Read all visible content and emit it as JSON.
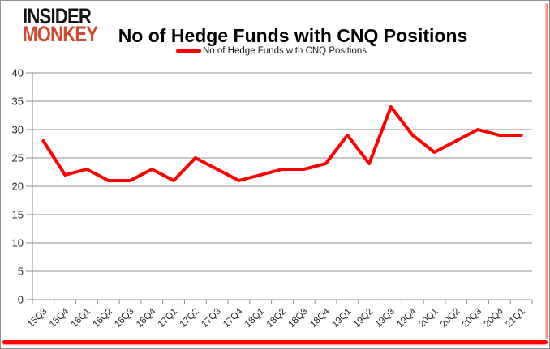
{
  "logo": {
    "line1": "INSIDER",
    "line2": "MONKEY"
  },
  "header": {
    "title": "No of Hedge Funds with CNQ Positions"
  },
  "legend": {
    "label": "No of Hedge Funds with CNQ Positions"
  },
  "colors": {
    "series_line": "#ff0000",
    "gridline": "#8c8c8c",
    "axis": "#8c8c8c",
    "tick_label": "#262626",
    "logo_black": "#151515",
    "logo_red": "#ce4a31",
    "frame_accent": "#ff0000"
  },
  "chart_data": {
    "type": "line",
    "title": "No of Hedge Funds with CNQ Positions",
    "categories": [
      "15Q3",
      "15Q4",
      "16Q1",
      "16Q2",
      "16Q3",
      "16Q4",
      "17Q1",
      "17Q2",
      "17Q3",
      "17Q4",
      "18Q1",
      "18Q2",
      "18Q3",
      "18Q4",
      "19Q1",
      "19Q2",
      "19Q3",
      "19Q4",
      "20Q1",
      "20Q2",
      "20Q3",
      "20Q4",
      "21Q1"
    ],
    "series": [
      {
        "name": "No of Hedge Funds with CNQ Positions",
        "color": "#ff0000",
        "values": [
          28,
          22,
          23,
          21,
          21,
          23,
          21,
          25,
          23,
          21,
          22,
          23,
          23,
          24,
          29,
          24,
          34,
          29,
          26,
          28,
          30,
          29,
          29
        ]
      }
    ],
    "xlabel": "",
    "ylabel": "",
    "ylim": [
      0,
      40
    ],
    "ytick_step": 5,
    "grid": true,
    "legend_position": "top-center"
  }
}
